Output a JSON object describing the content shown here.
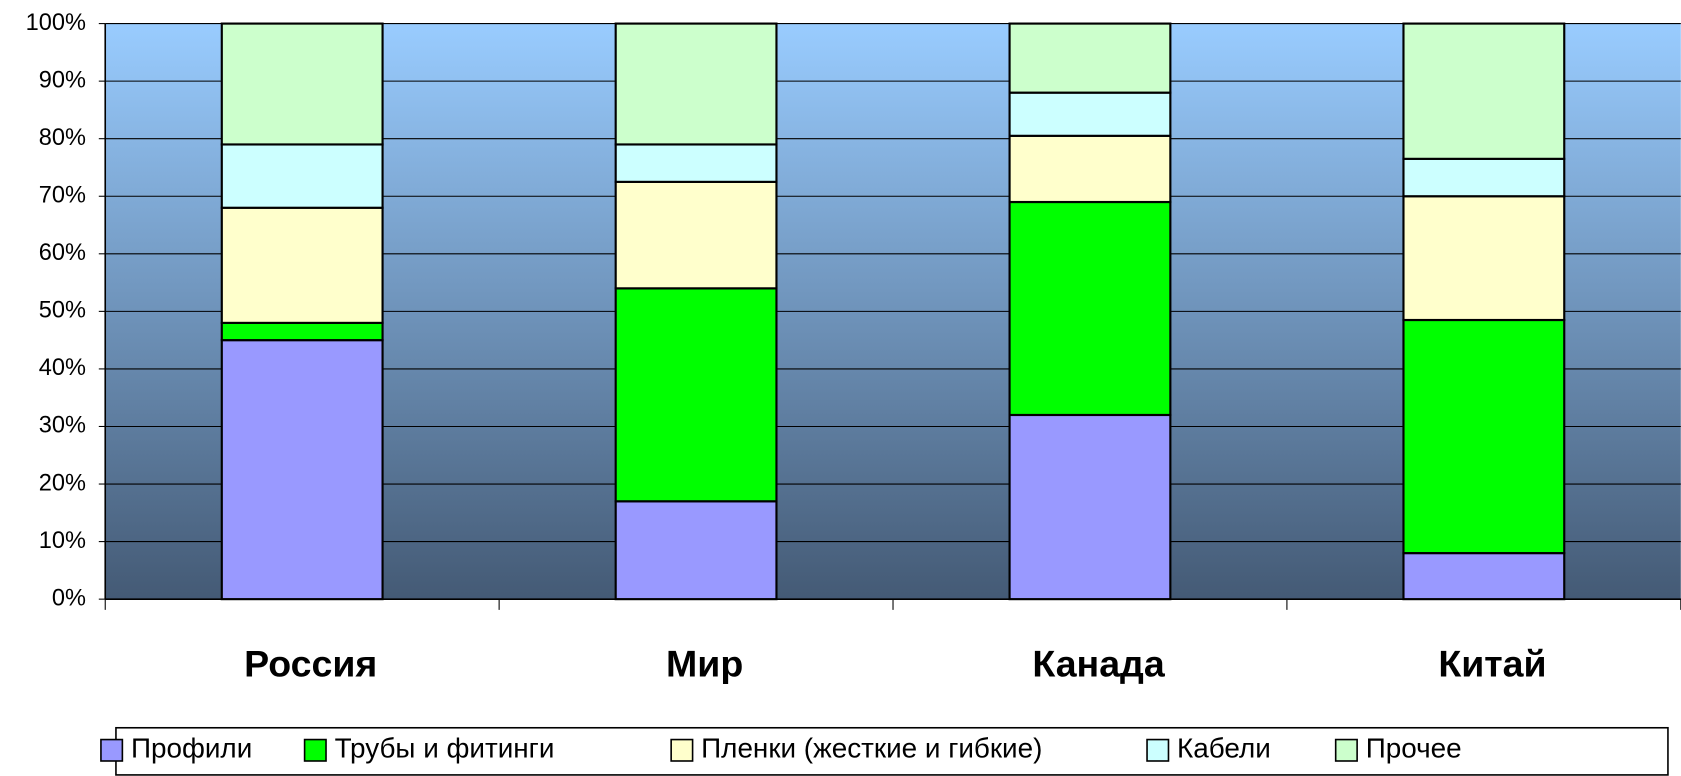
{
  "chart_data": {
    "type": "stacked_bar",
    "categories": [
      "Россия",
      "Мир",
      "Канада",
      "Китай"
    ],
    "series": [
      {
        "name": "Профили",
        "color": "#9999ff",
        "values": [
          45,
          17,
          32,
          8
        ]
      },
      {
        "name": "Трубы и фитинги",
        "color": "#00ff00",
        "values": [
          3,
          37,
          37,
          40.5
        ]
      },
      {
        "name": "Пленки (жесткие и гибкие)",
        "color": "#ffffcc",
        "values": [
          20,
          18.5,
          11.5,
          21.5
        ]
      },
      {
        "name": "Кабели",
        "color": "#ccffff",
        "values": [
          11,
          6.5,
          7.5,
          6.5
        ]
      },
      {
        "name": "Прочее",
        "color": "#ccffcc",
        "values": [
          21,
          21,
          12,
          23.5
        ]
      }
    ],
    "ylim": [
      0,
      100
    ],
    "yticks": [
      {
        "value": 0,
        "label": "0%"
      },
      {
        "value": 10,
        "label": "10%"
      },
      {
        "value": 20,
        "label": "20%"
      },
      {
        "value": 30,
        "label": "30%"
      },
      {
        "value": 40,
        "label": "40%"
      },
      {
        "value": 50,
        "label": "50%"
      },
      {
        "value": 60,
        "label": "60%"
      },
      {
        "value": 70,
        "label": "70%"
      },
      {
        "value": 80,
        "label": "80%"
      },
      {
        "value": 90,
        "label": "90%"
      },
      {
        "value": 100,
        "label": "100%"
      }
    ],
    "grid": true,
    "legend": "bottom"
  }
}
